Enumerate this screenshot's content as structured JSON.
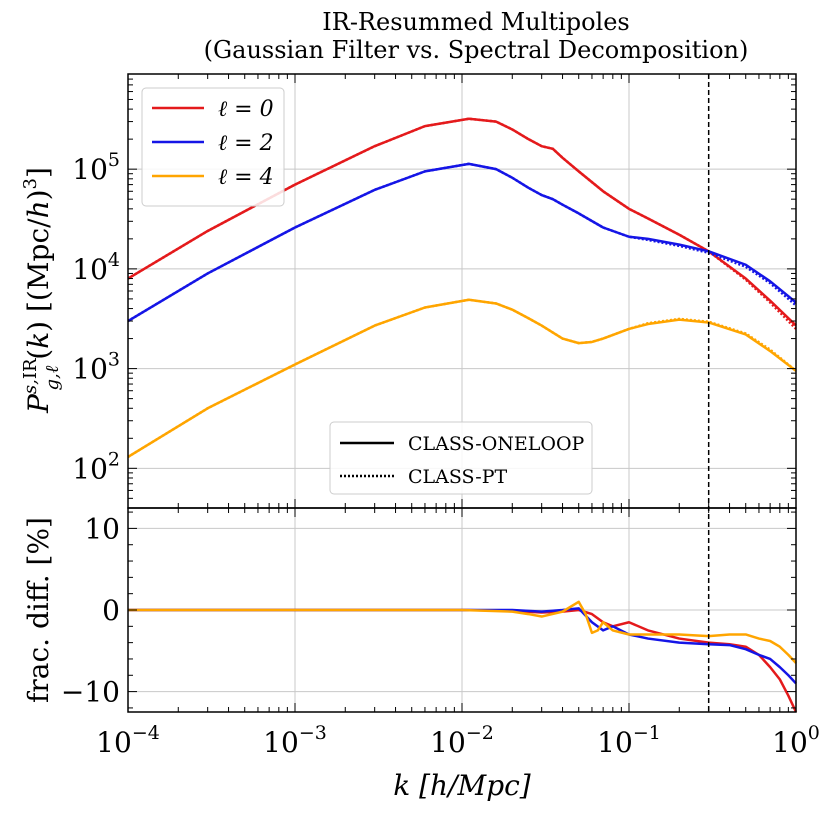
{
  "chart_data": [
    {
      "type": "line",
      "title": "IR-Resummed Multipoles",
      "subtitle": "(Gaussian Filter vs. Spectral Decomposition)",
      "xlabel": "",
      "ylabel": "P^{s,IR}_{g,ℓ}(k) [(Mpc/h)^3]",
      "xscale": "log",
      "yscale": "log",
      "xlim": [
        0.0001,
        1
      ],
      "ylim": [
        40,
        900000
      ],
      "grid": true,
      "vline_x": 0.3,
      "yticks": [
        {
          "value": 100,
          "label": "10",
          "exp": "2"
        },
        {
          "value": 1000,
          "label": "10",
          "exp": "3"
        },
        {
          "value": 10000,
          "label": "10",
          "exp": "4"
        },
        {
          "value": 100000,
          "label": "10",
          "exp": "5"
        }
      ],
      "legend_position": "top-left",
      "legend_style_position": "bottom-center",
      "style_legend": [
        {
          "label": "CLASS-ONELOOP",
          "style": "solid"
        },
        {
          "label": "CLASS-PT",
          "style": "dotted"
        }
      ],
      "series": [
        {
          "name": "ℓ = 0",
          "color": "#e41a1c",
          "x": [
            0.0001,
            0.0003,
            0.001,
            0.003,
            0.006,
            0.011,
            0.016,
            0.02,
            0.025,
            0.03,
            0.035,
            0.04,
            0.05,
            0.07,
            0.1,
            0.13,
            0.2,
            0.3,
            0.5,
            0.7,
            1.0
          ],
          "y": [
            8000,
            24000,
            70000,
            170000,
            270000,
            320000,
            300000,
            250000,
            200000,
            170000,
            160000,
            130000,
            95000,
            60000,
            40000,
            32000,
            22000,
            15000,
            8000,
            4800,
            2700
          ],
          "y_alt": [
            8000,
            24000,
            70000,
            170000,
            270000,
            320000,
            300000,
            250000,
            200000,
            170000,
            160000,
            130000,
            95000,
            60000,
            40000,
            32000,
            22000,
            15000,
            7800,
            4600,
            2500
          ]
        },
        {
          "name": "ℓ = 2",
          "color": "#1515e6",
          "x": [
            0.0001,
            0.0003,
            0.001,
            0.003,
            0.006,
            0.011,
            0.016,
            0.02,
            0.025,
            0.03,
            0.035,
            0.04,
            0.05,
            0.07,
            0.1,
            0.13,
            0.2,
            0.3,
            0.5,
            0.7,
            1.0
          ],
          "y": [
            3000,
            9000,
            26000,
            62000,
            95000,
            113000,
            100000,
            82000,
            65000,
            55000,
            50000,
            44000,
            36000,
            26000,
            21000,
            20000,
            17500,
            15000,
            11000,
            7500,
            4600
          ],
          "y_alt": [
            3000,
            9000,
            26000,
            62000,
            95000,
            113000,
            100000,
            82000,
            65000,
            55000,
            50000,
            44000,
            36000,
            26000,
            21000,
            19500,
            17000,
            14500,
            10500,
            7200,
            4300
          ]
        },
        {
          "name": "ℓ = 4",
          "color": "#ffa500",
          "x": [
            0.0001,
            0.0003,
            0.001,
            0.003,
            0.006,
            0.011,
            0.016,
            0.02,
            0.025,
            0.03,
            0.035,
            0.04,
            0.05,
            0.06,
            0.07,
            0.1,
            0.13,
            0.2,
            0.3,
            0.5,
            0.7,
            1.0
          ],
          "y": [
            130,
            400,
            1100,
            2700,
            4100,
            4900,
            4500,
            3900,
            3200,
            2700,
            2300,
            2000,
            1800,
            1850,
            2000,
            2500,
            2800,
            3100,
            2900,
            2200,
            1500,
            950
          ],
          "y_alt": [
            130,
            400,
            1100,
            2700,
            4100,
            4900,
            4500,
            3900,
            3200,
            2700,
            2300,
            2000,
            1800,
            1850,
            2000,
            2500,
            2850,
            3150,
            2950,
            2250,
            1550,
            950
          ]
        }
      ]
    },
    {
      "type": "line",
      "xlabel": "k [h/Mpc]",
      "ylabel": "frac. diff. [%]",
      "xscale": "log",
      "xlim": [
        0.0001,
        1
      ],
      "ylim": [
        -12.5,
        12.5
      ],
      "grid": true,
      "vline_x": 0.3,
      "xticks": [
        {
          "value": 0.0001,
          "label": "10",
          "exp": "−4"
        },
        {
          "value": 0.001,
          "label": "10",
          "exp": "−3"
        },
        {
          "value": 0.01,
          "label": "10",
          "exp": "−2"
        },
        {
          "value": 0.1,
          "label": "10",
          "exp": "−1"
        },
        {
          "value": 1,
          "label": "10",
          "exp": "0"
        }
      ],
      "yticks": [
        {
          "value": 10,
          "label": "10"
        },
        {
          "value": 0,
          "label": "0"
        },
        {
          "value": -10,
          "label": "−10"
        }
      ],
      "series": [
        {
          "name": "ℓ = 0",
          "color": "#e41a1c",
          "x": [
            0.0001,
            0.001,
            0.01,
            0.02,
            0.03,
            0.04,
            0.05,
            0.06,
            0.07,
            0.08,
            0.1,
            0.13,
            0.2,
            0.3,
            0.4,
            0.5,
            0.6,
            0.7,
            0.8,
            0.9,
            1.0
          ],
          "y": [
            0,
            0,
            0,
            -0.1,
            -0.3,
            -0.2,
            0,
            -0.5,
            -1.5,
            -2.0,
            -1.5,
            -2.5,
            -3.5,
            -4.0,
            -4.2,
            -4.5,
            -5.5,
            -7.0,
            -8.5,
            -10.5,
            -12.5
          ]
        },
        {
          "name": "ℓ = 2",
          "color": "#1515e6",
          "x": [
            0.0001,
            0.001,
            0.01,
            0.02,
            0.03,
            0.04,
            0.05,
            0.06,
            0.07,
            0.08,
            0.1,
            0.13,
            0.2,
            0.3,
            0.4,
            0.5,
            0.6,
            0.7,
            0.8,
            0.9,
            1.0
          ],
          "y": [
            0,
            0,
            0,
            0,
            -0.2,
            0,
            0.2,
            -1.5,
            -2.5,
            -2.0,
            -3.0,
            -3.5,
            -4.0,
            -4.2,
            -4.3,
            -4.8,
            -5.5,
            -6.0,
            -7.0,
            -8.0,
            -9.0
          ]
        },
        {
          "name": "ℓ = 4",
          "color": "#ffa500",
          "x": [
            0.0001,
            0.001,
            0.01,
            0.02,
            0.025,
            0.03,
            0.04,
            0.05,
            0.055,
            0.06,
            0.065,
            0.07,
            0.08,
            0.1,
            0.13,
            0.2,
            0.3,
            0.4,
            0.5,
            0.6,
            0.7,
            0.8,
            0.9,
            1.0
          ],
          "y": [
            0,
            0,
            0,
            -0.2,
            -0.5,
            -0.8,
            -0.2,
            1.0,
            -0.5,
            -2.8,
            -2.5,
            -1.5,
            -2.5,
            -3.0,
            -3.0,
            -3.0,
            -3.2,
            -3.0,
            -3.0,
            -3.5,
            -3.8,
            -4.5,
            -5.5,
            -6.5
          ]
        }
      ]
    }
  ]
}
